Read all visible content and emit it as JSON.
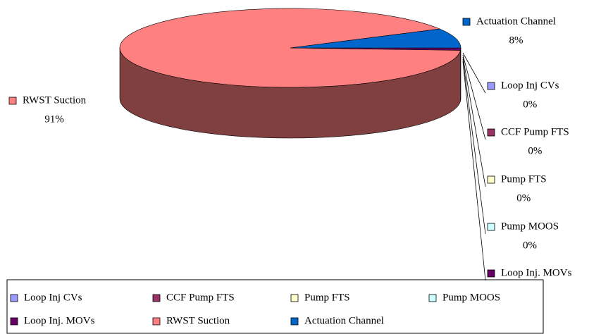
{
  "chart_data": {
    "type": "pie",
    "categories": [
      "Loop Inj CVs",
      "CCF Pump FTS",
      "Pump FTS",
      "Pump MOOS",
      "Loop Inj. MOVs",
      "RWST Suction",
      "Actuation Channel"
    ],
    "values": [
      0,
      0,
      0,
      0,
      1,
      91,
      8
    ],
    "value_labels": [
      "0%",
      "0%",
      "0%",
      "0%",
      null,
      "91%",
      "8%"
    ],
    "colors": [
      "#9999FF",
      "#993366",
      "#FFFFCC",
      "#CCFFFF",
      "#660066",
      "#FF8080",
      "#0066CC"
    ]
  }
}
